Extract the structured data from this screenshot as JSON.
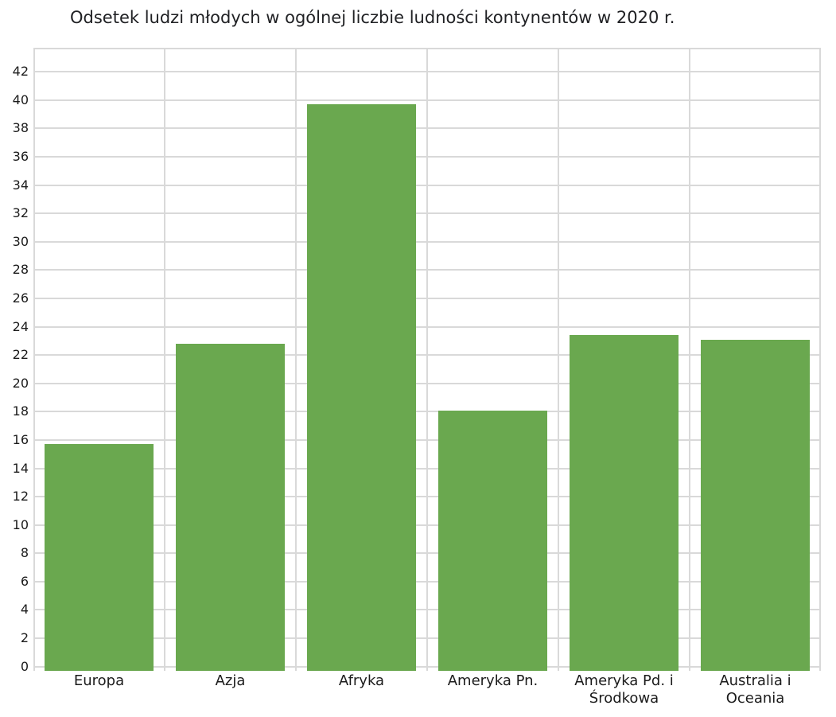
{
  "chart_data": {
    "type": "bar",
    "title": "Odsetek ludzi młodych w ogólnej liczbie ludności kontynentów w 2020 r.",
    "categories": [
      "Europa",
      "Azja",
      "Afryka",
      "Ameryka Pn.",
      "Ameryka Pd. i Środkowa",
      "Australia i Oceania"
    ],
    "category_display_lines": [
      [
        "Europa"
      ],
      [
        "Azja"
      ],
      [
        "Afryka"
      ],
      [
        "Ameryka Pn."
      ],
      [
        "Ameryka Pd. i",
        "Środkowa"
      ],
      [
        "Australia i",
        "Oceania"
      ]
    ],
    "values": [
      15.7,
      22.8,
      39.7,
      18.1,
      23.4,
      23.1
    ],
    "xlabel": "",
    "ylabel": "",
    "y_ticks": [
      0,
      2,
      4,
      6,
      8,
      10,
      12,
      14,
      16,
      18,
      20,
      22,
      24,
      26,
      28,
      30,
      32,
      34,
      36,
      38,
      40,
      42
    ],
    "ylim": [
      -0.3,
      43.7
    ],
    "grid": true,
    "legend": false,
    "colors": {
      "bar": "#6aa84f",
      "grid": "#d9d9d9",
      "text": "#1b1b1b",
      "title": "#202124",
      "background": "#ffffff"
    }
  }
}
